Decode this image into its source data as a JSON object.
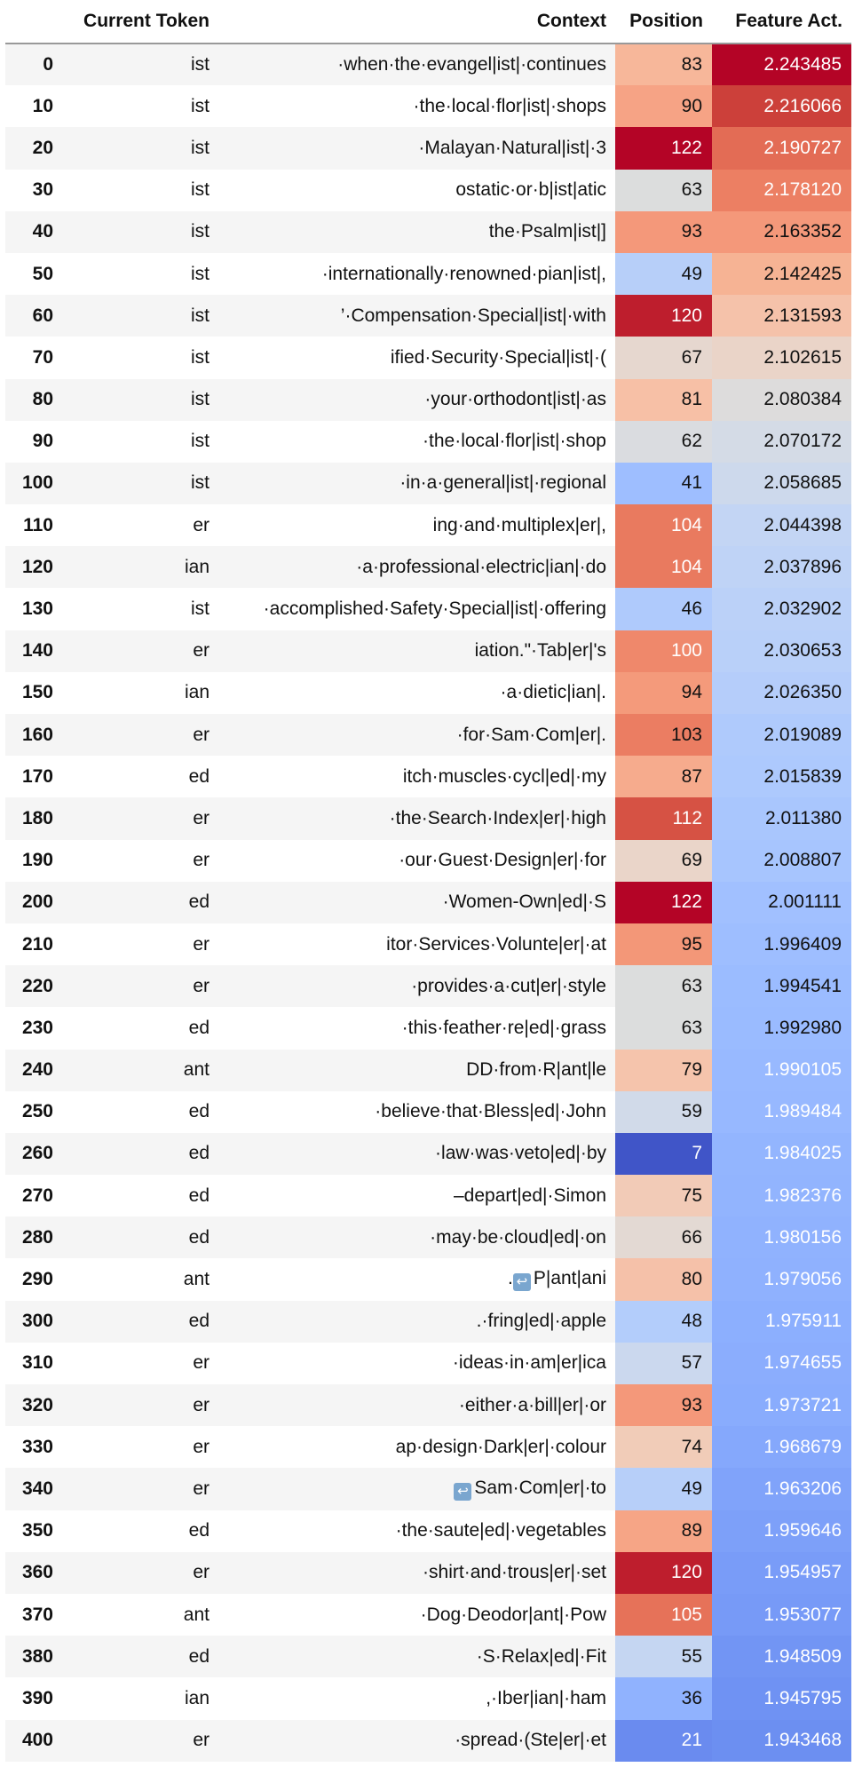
{
  "headers": {
    "index": "",
    "token": "Current Token",
    "context": "Context",
    "position": "Position",
    "activation": "Feature Act."
  },
  "rows": [
    {
      "index": "0",
      "token": "ist",
      "context": "·when·the·evangel|ist|·continues",
      "position": "83",
      "activation": "2.243485",
      "pos_color": "#f7b79a",
      "act_color": "#b40426",
      "act_text": "#ffffff"
    },
    {
      "index": "10",
      "token": "ist",
      "context": "·the·local·flor|ist|·shops",
      "position": "90",
      "activation": "2.216066",
      "pos_color": "#f6a385",
      "act_color": "#cc403a",
      "act_text": "#ffffff"
    },
    {
      "index": "20",
      "token": "ist",
      "context": "·Malayan·Natural|ist|·3",
      "position": "122",
      "activation": "2.190727",
      "pos_color": "#b40426",
      "act_color": "#e36c55",
      "act_text": "#ffffff",
      "pos_text": "#ffffff"
    },
    {
      "index": "30",
      "token": "ist",
      "context": "ostatic·or·b|ist|atic",
      "position": "63",
      "activation": "2.178120",
      "pos_color": "#dcdddd",
      "act_color": "#ec7f63",
      "act_text": "#ffffff"
    },
    {
      "index": "40",
      "token": "ist",
      "context": "the·Psalm|ist|]",
      "position": "93",
      "activation": "2.163352",
      "pos_color": "#f4987a",
      "act_color": "#f4987a",
      "act_text": "#111111"
    },
    {
      "index": "50",
      "token": "ist",
      "context": "·internationally·renowned·pian|ist|,",
      "position": "49",
      "activation": "2.142425",
      "pos_color": "#b7cff9",
      "act_color": "#f6b394",
      "act_text": "#111111"
    },
    {
      "index": "60",
      "token": "ist",
      "context": "’·Compensation·Special|ist|·with",
      "position": "120",
      "activation": "2.131593",
      "pos_color": "#be1e2d",
      "act_color": "#f5c2aa",
      "act_text": "#111111",
      "pos_text": "#ffffff"
    },
    {
      "index": "70",
      "token": "ist",
      "context": "ified·Security·Special|ist|·(",
      "position": "67",
      "activation": "2.102615",
      "pos_color": "#e6d7cf",
      "act_color": "#ead4c8",
      "act_text": "#111111"
    },
    {
      "index": "80",
      "token": "ist",
      "context": "·your·orthodont|ist|·as",
      "position": "81",
      "activation": "2.080384",
      "pos_color": "#f7c0a6",
      "act_color": "#dddcdc",
      "act_text": "#111111"
    },
    {
      "index": "90",
      "token": "ist",
      "context": "·the·local·flor|ist|·shop",
      "position": "62",
      "activation": "2.070172",
      "pos_color": "#dadce0",
      "act_color": "#d4dbe6",
      "act_text": "#111111"
    },
    {
      "index": "100",
      "token": "ist",
      "context": "·in·a·general|ist|·regional",
      "position": "41",
      "activation": "2.058685",
      "pos_color": "#9ebeff",
      "act_color": "#cdd9ec",
      "act_text": "#111111"
    },
    {
      "index": "110",
      "token": "er",
      "context": "ing·and·multiplex|er|,",
      "position": "104",
      "activation": "2.044398",
      "pos_color": "#e97a5f",
      "act_color": "#c3d5f4",
      "act_text": "#111111",
      "pos_text": "#ffffff"
    },
    {
      "index": "120",
      "token": "ian",
      "context": "·a·professional·electric|ian|·do",
      "position": "104",
      "activation": "2.037896",
      "pos_color": "#e97a5f",
      "act_color": "#bfd3f6",
      "act_text": "#111111",
      "pos_text": "#ffffff"
    },
    {
      "index": "130",
      "token": "ist",
      "context": "·accomplished·Safety·Special|ist|·offering",
      "position": "46",
      "activation": "2.032902",
      "pos_color": "#afcafc",
      "act_color": "#bbd1f8",
      "act_text": "#111111"
    },
    {
      "index": "140",
      "token": "er",
      "context": "iation.\"·Tab|er|'s",
      "position": "100",
      "activation": "2.030653",
      "pos_color": "#ef886b",
      "act_color": "#b9d0f9",
      "act_text": "#111111",
      "pos_text": "#ffffff"
    },
    {
      "index": "150",
      "token": "ian",
      "context": "·a·dietic|ian|.",
      "position": "94",
      "activation": "2.026350",
      "pos_color": "#f49a7b",
      "act_color": "#b5cdfa",
      "act_text": "#111111"
    },
    {
      "index": "160",
      "token": "er",
      "context": "·for·Sam·Com|er|.",
      "position": "103",
      "activation": "2.019089",
      "pos_color": "#eb7d62",
      "act_color": "#afcafc",
      "act_text": "#111111"
    },
    {
      "index": "170",
      "token": "ed",
      "context": "itch·muscles·cycl|ed|·my",
      "position": "87",
      "activation": "2.015839",
      "pos_color": "#f6ab8d",
      "act_color": "#adc9fd",
      "act_text": "#111111"
    },
    {
      "index": "180",
      "token": "er",
      "context": "·the·Search·Index|er|·high",
      "position": "112",
      "activation": "2.011380",
      "pos_color": "#d65244",
      "act_color": "#a9c6fd",
      "act_text": "#111111",
      "pos_text": "#ffffff"
    },
    {
      "index": "190",
      "token": "er",
      "context": "·our·Guest·Design|er|·for",
      "position": "69",
      "activation": "2.008807",
      "pos_color": "#ead5c9",
      "act_color": "#a7c5fe",
      "act_text": "#111111"
    },
    {
      "index": "200",
      "token": "ed",
      "context": "·Women-Own|ed|·S",
      "position": "122",
      "activation": "2.001111",
      "pos_color": "#b40426",
      "act_color": "#a1c0ff",
      "act_text": "#111111",
      "pos_text": "#ffffff"
    },
    {
      "index": "210",
      "token": "er",
      "context": "itor·Services·Volunte|er|·at",
      "position": "95",
      "activation": "1.996409",
      "pos_color": "#f39778",
      "act_color": "#9ebeff",
      "act_text": "#111111"
    },
    {
      "index": "220",
      "token": "er",
      "context": "·provides·a·cut|er|·style",
      "position": "63",
      "activation": "1.994541",
      "pos_color": "#dcdddd",
      "act_color": "#9bbcff",
      "act_text": "#111111"
    },
    {
      "index": "230",
      "token": "ed",
      "context": "·this·feather·re|ed|·grass",
      "position": "63",
      "activation": "1.992980",
      "pos_color": "#dcdddd",
      "act_color": "#9abbff",
      "act_text": "#111111"
    },
    {
      "index": "240",
      "token": "ant",
      "context": "DD·from·R|ant|le",
      "position": "79",
      "activation": "1.990105",
      "pos_color": "#f5c4ac",
      "act_color": "#98b9ff",
      "act_text": "#ffffff"
    },
    {
      "index": "250",
      "token": "ed",
      "context": "·believe·that·Bless|ed|·John",
      "position": "59",
      "activation": "1.989484",
      "pos_color": "#d1dae9",
      "act_color": "#97b8ff",
      "act_text": "#ffffff"
    },
    {
      "index": "260",
      "token": "ed",
      "context": "·law·was·veto|ed|·by",
      "position": "7",
      "activation": "1.984025",
      "pos_color": "#4055c8",
      "act_color": "#93b5fe",
      "act_text": "#ffffff",
      "pos_text": "#ffffff"
    },
    {
      "index": "270",
      "token": "ed",
      "context": "–depart|ed|·Simon",
      "position": "75",
      "activation": "1.982376",
      "pos_color": "#f2cbb7",
      "act_color": "#92b4fe",
      "act_text": "#ffffff"
    },
    {
      "index": "280",
      "token": "ed",
      "context": "·may·be·cloud|ed|·on",
      "position": "66",
      "activation": "1.980156",
      "pos_color": "#e3d9d3",
      "act_color": "#90b2fe",
      "act_text": "#ffffff"
    },
    {
      "index": "290",
      "token": "ant",
      "context": "P|ant|ani",
      "prefix": ".",
      "newline_icon": "return-icon",
      "position": "80",
      "activation": "1.979056",
      "pos_color": "#f5c1a9",
      "act_color": "#8fb1fe",
      "act_text": "#ffffff"
    },
    {
      "index": "300",
      "token": "ed",
      "context": ".·fring|ed|·apple",
      "position": "48",
      "activation": "1.975911",
      "pos_color": "#b3cdfb",
      "act_color": "#8caffe",
      "act_text": "#ffffff"
    },
    {
      "index": "310",
      "token": "er",
      "context": "·ideas·in·am|er|ica",
      "position": "57",
      "activation": "1.974655",
      "pos_color": "#cbd8ee",
      "act_color": "#8badfd",
      "act_text": "#ffffff"
    },
    {
      "index": "320",
      "token": "er",
      "context": "·either·a·bill|er|·or",
      "position": "93",
      "activation": "1.973721",
      "pos_color": "#f4987a",
      "act_color": "#89acfd",
      "act_text": "#ffffff"
    },
    {
      "index": "330",
      "token": "er",
      "context": "ap·design·Dark|er|·colour",
      "position": "74",
      "activation": "1.968679",
      "pos_color": "#f1ccb8",
      "act_color": "#85a8fc",
      "act_text": "#ffffff"
    },
    {
      "index": "340",
      "token": "er",
      "context": "Sam·Com|er|·to",
      "prefix": "",
      "newline_icon": "return-icon",
      "position": "49",
      "activation": "1.963206",
      "pos_color": "#b7cff9",
      "act_color": "#80a3fa",
      "act_text": "#ffffff"
    },
    {
      "index": "350",
      "token": "ed",
      "context": "·the·saute|ed|·vegetables",
      "position": "89",
      "activation": "1.959646",
      "pos_color": "#f6a586",
      "act_color": "#7da0f9",
      "act_text": "#ffffff"
    },
    {
      "index": "360",
      "token": "er",
      "context": "·shirt·and·trous|er|·set",
      "position": "120",
      "activation": "1.954957",
      "pos_color": "#be1e2d",
      "act_color": "#799cf8",
      "act_text": "#ffffff",
      "pos_text": "#ffffff"
    },
    {
      "index": "370",
      "token": "ant",
      "context": "·Dog·Deodor|ant|·Pow",
      "position": "105",
      "activation": "1.953077",
      "pos_color": "#e67259",
      "act_color": "#779af7",
      "act_text": "#ffffff",
      "pos_text": "#ffffff"
    },
    {
      "index": "380",
      "token": "ed",
      "context": "·S·Relax|ed|·Fit",
      "position": "55",
      "activation": "1.948509",
      "pos_color": "#c5d6f2",
      "act_color": "#7295f4",
      "act_text": "#ffffff"
    },
    {
      "index": "390",
      "token": "ian",
      "context": ",·Iber|ian|·ham",
      "position": "36",
      "activation": "1.945795",
      "pos_color": "#90b2fe",
      "act_color": "#6f92f3",
      "act_text": "#ffffff"
    },
    {
      "index": "400",
      "token": "er",
      "context": "·spread·(Ste|er|·et",
      "position": "21",
      "activation": "1.943468",
      "pos_color": "#6a8bef",
      "act_color": "#6c8ff1",
      "act_text": "#ffffff",
      "pos_text": "#ffffff"
    }
  ]
}
